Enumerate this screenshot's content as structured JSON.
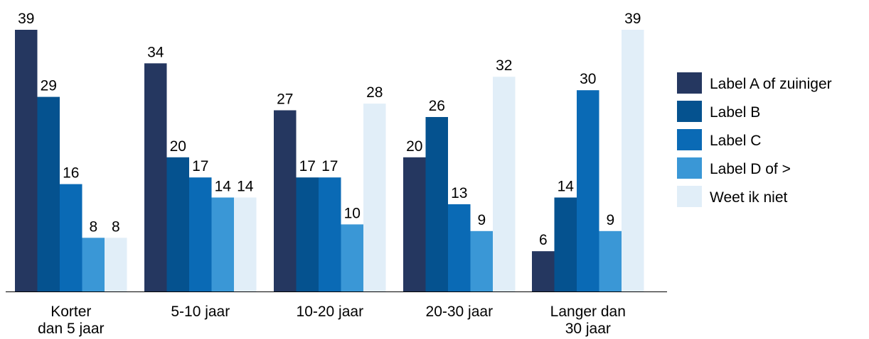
{
  "chart_data": {
    "type": "bar",
    "categories": [
      [
        "Korter",
        "dan 5 jaar"
      ],
      [
        "5-10 jaar"
      ],
      [
        "10-20 jaar"
      ],
      [
        "20-30 jaar"
      ],
      [
        "Langer dan",
        "30 jaar"
      ]
    ],
    "series": [
      {
        "name": "Label A of zuiniger",
        "color": "#253760",
        "values": [
          39,
          34,
          27,
          20,
          6
        ]
      },
      {
        "name": "Label B",
        "color": "#05528f",
        "values": [
          29,
          20,
          17,
          26,
          14
        ]
      },
      {
        "name": "Label C",
        "color": "#0a6ab5",
        "values": [
          16,
          17,
          17,
          13,
          30
        ]
      },
      {
        "name": "Label D of >",
        "color": "#3a97d6",
        "values": [
          8,
          14,
          10,
          9,
          9
        ]
      },
      {
        "name": "Weet ik niet",
        "color": "#e1eef8",
        "values": [
          8,
          14,
          28,
          32,
          39
        ]
      }
    ],
    "ylim": [
      0,
      39
    ],
    "grid": false,
    "legend": "right"
  }
}
